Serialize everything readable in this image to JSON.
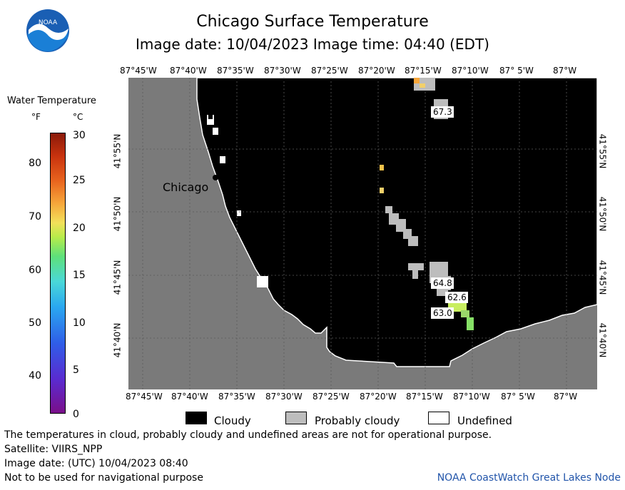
{
  "title": "Chicago Surface Temperature",
  "subtitle": "Image date: 10/04/2023     Image time: 04:40 (EDT)",
  "longitude_labels": [
    "87°45'W",
    "87°40'W",
    "87°35'W",
    "87°30'W",
    "87°25'W",
    "87°20'W",
    "87°15'W",
    "87°10'W",
    "87° 5'W",
    "87°W"
  ],
  "latitude_labels": [
    "41°55'N",
    "41°50'N",
    "41°45'N",
    "41°40'N"
  ],
  "legend": {
    "title": "Water Temperature",
    "unit_f": "°F",
    "unit_c": "°C",
    "ticks_f": [
      "80",
      "70",
      "60",
      "50",
      "40"
    ],
    "ticks_c": [
      "30",
      "25",
      "20",
      "15",
      "10",
      "5",
      "0"
    ]
  },
  "city_label": "Chicago",
  "temperature_readings": [
    "67.3",
    "64.8",
    "62.6",
    "63.0"
  ],
  "key": [
    {
      "label": "Cloudy",
      "color": "#000000"
    },
    {
      "label": "Probably cloudy",
      "color": "#bdbdbd"
    },
    {
      "label": "Undefined",
      "color": "#ffffff"
    }
  ],
  "colors": {
    "land": "#7a7a7a",
    "cloud": "#000000",
    "probably_cloudy": "#bdbdbd"
  },
  "footer": {
    "note": "The temperatures in cloud, probably cloudy and undefined areas are not for operational purpose.",
    "satellite": "Satellite: VIIRS_NPP",
    "image_date_utc": "Image date: (UTC) 10/04/2023  08:40",
    "nav_warning": "Not to be used for navigational purpose",
    "credit": "NOAA CoastWatch Great Lakes Node"
  }
}
